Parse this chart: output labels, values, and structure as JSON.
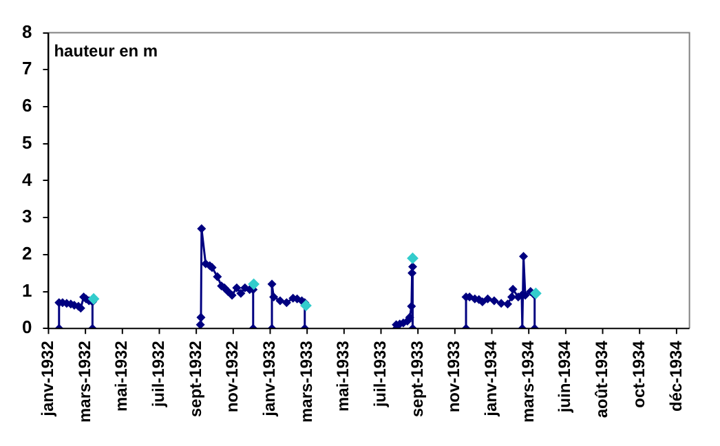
{
  "chart_data": {
    "type": "line",
    "ylabel": "hauteur en m",
    "marker": "diamond",
    "grid": false,
    "legend": false,
    "xlim": [
      "1932-01-01",
      "1934-12-29"
    ],
    "xticks": [
      {
        "value": "1932-01-01",
        "label": "janv-1932"
      },
      {
        "value": "1932-03-04",
        "label": "mars-1932"
      },
      {
        "value": "1932-05-06",
        "label": "mai-1932"
      },
      {
        "value": "1932-07-08",
        "label": "juil-1932"
      },
      {
        "value": "1932-09-09",
        "label": "sept-1932"
      },
      {
        "value": "1932-11-11",
        "label": "nov-1932"
      },
      {
        "value": "1933-01-13",
        "label": "janv-1933"
      },
      {
        "value": "1933-03-17",
        "label": "mars-1933"
      },
      {
        "value": "1933-05-19",
        "label": "mai-1933"
      },
      {
        "value": "1933-07-21",
        "label": "juil-1933"
      },
      {
        "value": "1933-09-22",
        "label": "sept-1933"
      },
      {
        "value": "1933-11-24",
        "label": "nov-1933"
      },
      {
        "value": "1934-01-26",
        "label": "janv-1934"
      },
      {
        "value": "1934-03-30",
        "label": "mars-1934"
      },
      {
        "value": "1934-06-01",
        "label": "juin-1934"
      },
      {
        "value": "1934-08-03",
        "label": "août-1934"
      },
      {
        "value": "1934-10-05",
        "label": "oct-1934"
      },
      {
        "value": "1934-12-07",
        "label": "déc-1934"
      }
    ],
    "ylim": [
      0,
      8
    ],
    "yticks": [
      0,
      1,
      2,
      3,
      4,
      5,
      6,
      7,
      8
    ],
    "series": [
      {
        "type": "line",
        "color": "#000080",
        "x": [
          "1932-01-19",
          "1932-01-19",
          "1932-01-25",
          "1932-02-01",
          "1932-02-08",
          "1932-02-14",
          "1932-02-21",
          "1932-02-25",
          "1932-03-01",
          "1932-03-05",
          "1932-03-10",
          "1932-03-16",
          "1932-03-16",
          "1932-06-01",
          "1932-09-16",
          "1932-09-17",
          "1932-09-18",
          "1932-09-25",
          "1932-10-02",
          "1932-10-06",
          "1932-10-15",
          "1932-10-22",
          "1932-10-27",
          "1932-11-02",
          "1932-11-09",
          "1932-11-17",
          "1932-11-24",
          "1932-12-01",
          "1932-12-09",
          "1932-12-15",
          "1932-12-15",
          "1932-12-31",
          "1933-01-16",
          "1933-01-16",
          "1933-01-19",
          "1933-01-30",
          "1933-02-10",
          "1933-02-21",
          "1933-02-28",
          "1933-03-08",
          "1933-03-13",
          "1933-03-13",
          "1933-06-01",
          "1933-08-16",
          "1933-08-16",
          "1933-08-22",
          "1933-08-28",
          "1933-09-04",
          "1933-09-08",
          "1933-09-11",
          "1933-09-12",
          "1933-09-13",
          "1933-09-13",
          "1933-11-01",
          "1933-12-13",
          "1933-12-13",
          "1933-12-19",
          "1933-12-28",
          "1934-01-04",
          "1934-01-10",
          "1934-01-19",
          "1934-01-30",
          "1934-02-11",
          "1934-02-22",
          "1934-03-01",
          "1934-03-03",
          "1934-03-12",
          "1934-03-18",
          "1934-03-19",
          "1934-03-21",
          "1934-03-24",
          "1934-04-02",
          "1934-04-09",
          "1934-04-09"
        ],
        "values": [
          0,
          0.7,
          0.7,
          0.68,
          0.66,
          0.63,
          0.6,
          0.55,
          0.85,
          0.8,
          0.75,
          0.72,
          0,
          null,
          0.1,
          0.3,
          2.7,
          1.75,
          1.7,
          1.65,
          1.4,
          1.15,
          1.1,
          1.0,
          0.9,
          1.1,
          0.95,
          1.1,
          1.05,
          1.05,
          0,
          null,
          0,
          1.2,
          0.85,
          0.75,
          0.7,
          0.82,
          0.8,
          0.75,
          0.7,
          0,
          null,
          0,
          0.1,
          0.12,
          0.15,
          0.2,
          0.3,
          0.6,
          1.5,
          1.67,
          0,
          null,
          0,
          0.85,
          0.85,
          0.8,
          0.78,
          0.72,
          0.8,
          0.75,
          0.68,
          0.66,
          0.85,
          1.06,
          0.85,
          0.9,
          0,
          1.95,
          0.9,
          1.0,
          0.9,
          0
        ]
      },
      {
        "type": "scatter",
        "color": "#33cccc",
        "x": [
          "1932-03-18",
          "1932-12-16",
          "1933-03-15",
          "1933-09-13",
          "1934-04-11"
        ],
        "values": [
          0.8,
          1.2,
          0.62,
          1.9,
          0.95
        ]
      }
    ]
  }
}
